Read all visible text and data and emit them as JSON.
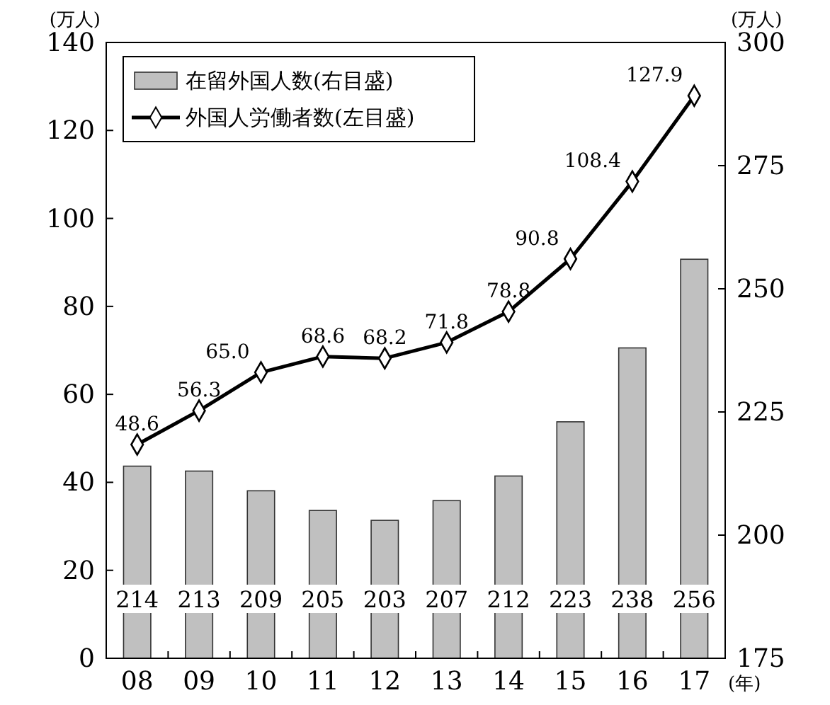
{
  "chart_data": {
    "type": "line",
    "categories": [
      "08",
      "09",
      "10",
      "11",
      "12",
      "13",
      "14",
      "15",
      "16",
      "17"
    ],
    "xlabel": "(年)",
    "ylabel": "(万人)",
    "y2label": "(万人)",
    "ylim": [
      0,
      140
    ],
    "yticks": [
      0,
      20,
      40,
      60,
      80,
      100,
      120,
      140
    ],
    "y2lim": [
      175,
      300
    ],
    "y2ticks": [
      175,
      200,
      225,
      250,
      275,
      300
    ],
    "series": [
      {
        "name": "在留外国人数(右目盛)",
        "type": "bar",
        "axis": "y2",
        "color": "#c0c0c0",
        "values": [
          214,
          213,
          209,
          205,
          203,
          207,
          212,
          223,
          238,
          256
        ]
      },
      {
        "name": "外国人労働者数(左目盛)",
        "color": "#000000",
        "marker": "diamond",
        "values": [
          48.6,
          56.3,
          65.0,
          68.6,
          68.2,
          71.8,
          78.8,
          90.8,
          108.4,
          127.9
        ],
        "value_labels": [
          "48.6",
          "56.3",
          "65.0",
          "68.6",
          "68.2",
          "71.8",
          "78.8",
          "90.8",
          "108.4",
          "127.9"
        ]
      }
    ],
    "data_labels": true,
    "legend": "top left",
    "grid": false
  }
}
